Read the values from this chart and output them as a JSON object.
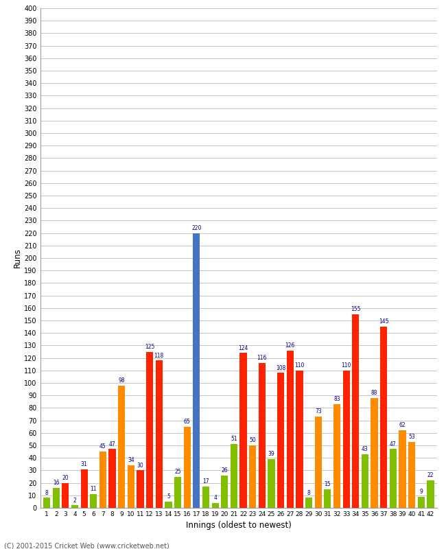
{
  "xlabel": "Innings (oldest to newest)",
  "ylabel": "Runs",
  "footer": "(C) 2001-2015 Cricket Web (www.cricketweb.net)",
  "ylim": [
    0,
    400
  ],
  "yticks": [
    0,
    10,
    20,
    30,
    40,
    50,
    60,
    70,
    80,
    90,
    100,
    110,
    120,
    130,
    140,
    150,
    160,
    170,
    180,
    190,
    200,
    210,
    220,
    230,
    240,
    250,
    260,
    270,
    280,
    290,
    300,
    310,
    320,
    330,
    340,
    350,
    360,
    370,
    380,
    390,
    400
  ],
  "bars": [
    {
      "inning": 1,
      "value": 8,
      "color": "#80C000"
    },
    {
      "inning": 2,
      "value": 16,
      "color": "#80C000"
    },
    {
      "inning": 3,
      "value": 20,
      "color": "#FF2200"
    },
    {
      "inning": 4,
      "value": 2,
      "color": "#80C000"
    },
    {
      "inning": 5,
      "value": 31,
      "color": "#FF2200"
    },
    {
      "inning": 6,
      "value": 11,
      "color": "#80C000"
    },
    {
      "inning": 7,
      "value": 45,
      "color": "#FF8C00"
    },
    {
      "inning": 8,
      "value": 47,
      "color": "#FF2200"
    },
    {
      "inning": 9,
      "value": 98,
      "color": "#FF8C00"
    },
    {
      "inning": 10,
      "value": 34,
      "color": "#FF8C00"
    },
    {
      "inning": 11,
      "value": 30,
      "color": "#FF2200"
    },
    {
      "inning": 12,
      "value": 125,
      "color": "#FF2200"
    },
    {
      "inning": 13,
      "value": 118,
      "color": "#FF2200"
    },
    {
      "inning": 14,
      "value": 5,
      "color": "#80C000"
    },
    {
      "inning": 15,
      "value": 25,
      "color": "#80C000"
    },
    {
      "inning": 16,
      "value": 65,
      "color": "#FF8C00"
    },
    {
      "inning": 17,
      "value": 220,
      "color": "#4472C4"
    },
    {
      "inning": 18,
      "value": 17,
      "color": "#80C000"
    },
    {
      "inning": 19,
      "value": 4,
      "color": "#80C000"
    },
    {
      "inning": 20,
      "value": 26,
      "color": "#80C000"
    },
    {
      "inning": 21,
      "value": 51,
      "color": "#80C000"
    },
    {
      "inning": 22,
      "value": 124,
      "color": "#FF2200"
    },
    {
      "inning": 23,
      "value": 50,
      "color": "#FF8C00"
    },
    {
      "inning": 24,
      "value": 116,
      "color": "#FF2200"
    },
    {
      "inning": 25,
      "value": 39,
      "color": "#80C000"
    },
    {
      "inning": 26,
      "value": 108,
      "color": "#FF2200"
    },
    {
      "inning": 27,
      "value": 126,
      "color": "#FF2200"
    },
    {
      "inning": 28,
      "value": 110,
      "color": "#FF2200"
    },
    {
      "inning": 29,
      "value": 8,
      "color": "#80C000"
    },
    {
      "inning": 30,
      "value": 73,
      "color": "#FF8C00"
    },
    {
      "inning": 31,
      "value": 15,
      "color": "#80C000"
    },
    {
      "inning": 32,
      "value": 83,
      "color": "#FF8C00"
    },
    {
      "inning": 33,
      "value": 110,
      "color": "#FF2200"
    },
    {
      "inning": 34,
      "value": 155,
      "color": "#FF2200"
    },
    {
      "inning": 35,
      "value": 43,
      "color": "#80C000"
    },
    {
      "inning": 36,
      "value": 88,
      "color": "#FF8C00"
    },
    {
      "inning": 37,
      "value": 145,
      "color": "#FF2200"
    },
    {
      "inning": 38,
      "value": 47,
      "color": "#80C000"
    },
    {
      "inning": 39,
      "value": 62,
      "color": "#FF8C00"
    },
    {
      "inning": 40,
      "value": 53,
      "color": "#FF8C00"
    },
    {
      "inning": 41,
      "value": 9,
      "color": "#80C000"
    },
    {
      "inning": 42,
      "value": 22,
      "color": "#80C000"
    }
  ],
  "label_color": "#00008B",
  "bg_color": "#FFFFFF",
  "grid_color": "#BBBBBB",
  "bar_width": 0.75,
  "figsize": [
    6.5,
    8.0
  ],
  "dpi": 100
}
